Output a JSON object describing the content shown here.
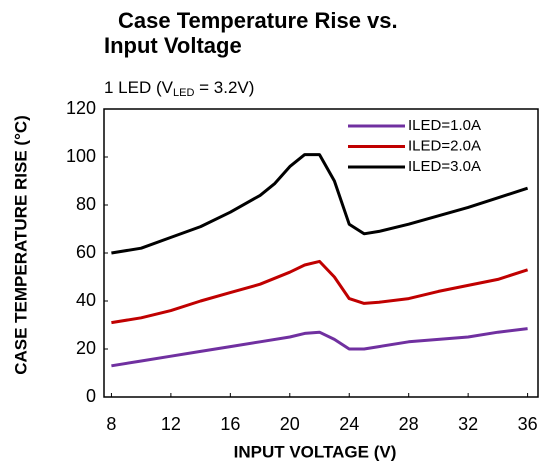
{
  "chart_data": {
    "type": "line",
    "title_lines": [
      "Case Temperature Rise vs.",
      "Input Voltage"
    ],
    "subtitle_parts": [
      "1 LED (V",
      "LED",
      " = 3.2V)"
    ],
    "x_label": "INPUT VOLTAGE (V)",
    "y_label": "CASE TEMPERATURE RISE (°C)",
    "xlim": [
      7.5,
      36.7
    ],
    "xticks": [
      8,
      12,
      16,
      20,
      24,
      28,
      32,
      36
    ],
    "ylim": [
      0,
      120
    ],
    "yticks": [
      0,
      20,
      40,
      60,
      80,
      100,
      120
    ],
    "grid": false,
    "legend": "upper right",
    "series": [
      {
        "name": "ILED=1.0A",
        "color": "#7030a0",
        "x": [
          8,
          10,
          12,
          14,
          16,
          18,
          20,
          21,
          22,
          23,
          24,
          25,
          26,
          28,
          30,
          32,
          34,
          36
        ],
        "values": [
          13,
          15,
          17,
          19,
          21,
          23,
          25,
          26.5,
          27,
          24,
          20,
          20,
          21,
          23,
          24,
          25,
          27,
          28.5
        ]
      },
      {
        "name": "ILED=2.0A",
        "color": "#c00000",
        "x": [
          8,
          10,
          12,
          14,
          16,
          18,
          20,
          21,
          22,
          23,
          24,
          25,
          26,
          28,
          30,
          32,
          34,
          36
        ],
        "values": [
          31,
          33,
          36,
          40,
          43.5,
          47,
          52,
          55,
          56.5,
          50,
          41,
          39,
          39.5,
          41,
          44,
          46.5,
          49,
          53
        ]
      },
      {
        "name": "ILED=3.0A",
        "color": "#000000",
        "x": [
          8,
          10,
          12,
          14,
          16,
          18,
          19,
          20,
          21,
          22,
          23,
          24,
          25,
          26,
          28,
          30,
          32,
          34,
          36
        ],
        "values": [
          60,
          62,
          66.5,
          71,
          77,
          84,
          89,
          96,
          101,
          101,
          90,
          72,
          68,
          69,
          72,
          75.5,
          79,
          83,
          87
        ]
      }
    ]
  }
}
